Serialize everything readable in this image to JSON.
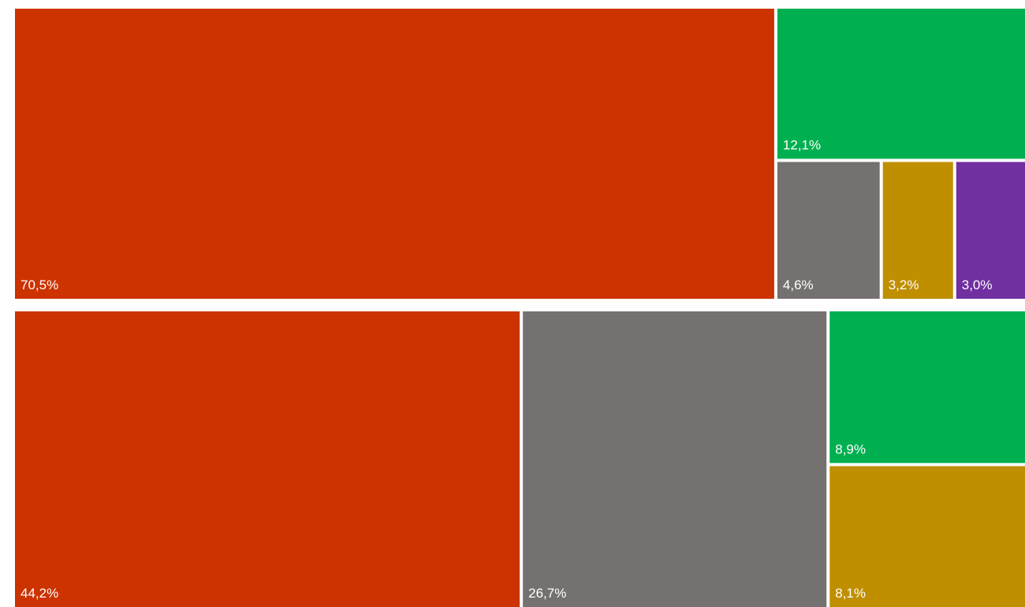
{
  "chart_data": [
    {
      "type": "treemap",
      "total": 100,
      "cells": [
        {
          "label": "70,5%",
          "value": 70.5,
          "color": "#cc3300"
        },
        {
          "label": "12,1%",
          "value": 12.1,
          "color": "#00b050"
        },
        {
          "label": "4,6%",
          "value": 4.6,
          "color": "#767171"
        },
        {
          "label": "3,2%",
          "value": 3.2,
          "color": "#bf8f00"
        },
        {
          "label": "3,0%",
          "value": 3.0,
          "color": "#7030a0"
        }
      ]
    },
    {
      "type": "treemap",
      "total": 100,
      "cells": [
        {
          "label": "44,2%",
          "value": 44.2,
          "color": "#cc3300"
        },
        {
          "label": "26,7%",
          "value": 26.7,
          "color": "#767171"
        },
        {
          "label": "8,9%",
          "value": 8.9,
          "color": "#00b050"
        },
        {
          "label": "8,1%",
          "value": 8.1,
          "color": "#bf8f00"
        }
      ]
    }
  ]
}
